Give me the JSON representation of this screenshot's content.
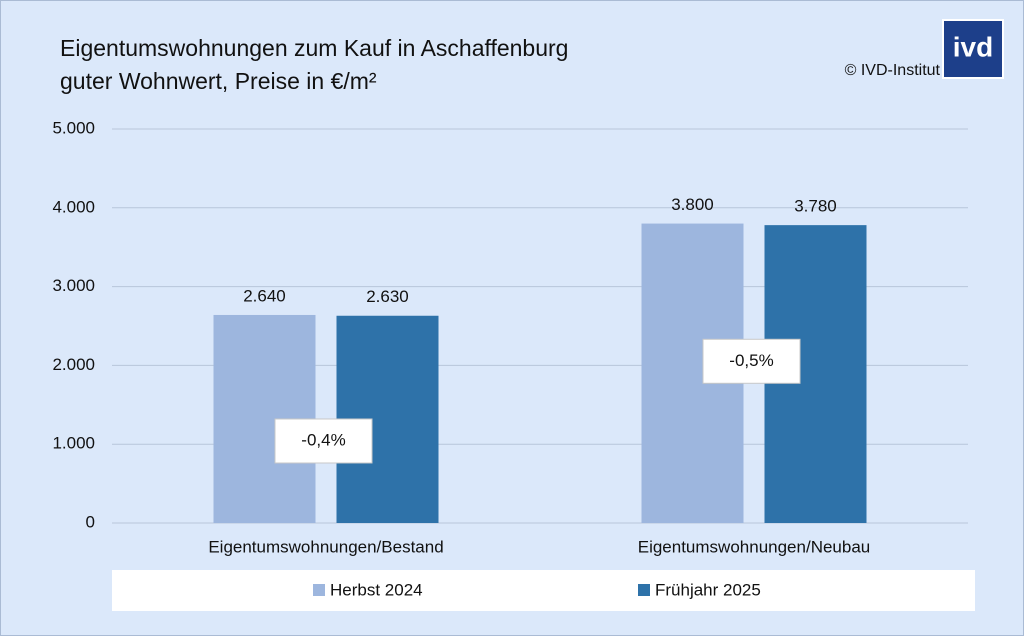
{
  "chart_data": {
    "type": "bar",
    "title": "Eigentumswohnungen zum Kauf in Aschaffenburg",
    "subtitle": "guter Wohnwert, Preise in €/m²",
    "source": "© IVD-Institut",
    "logo": "ivd",
    "categories": [
      "Eigentumswohnungen/Bestand",
      "Eigentumswohnungen/Neubau"
    ],
    "series": [
      {
        "name": "Herbst 2024",
        "color": "#9db6de",
        "values": [
          2640,
          3800
        ],
        "value_labels": [
          "2.640",
          "3.800"
        ]
      },
      {
        "name": "Frühjahr 2025",
        "color": "#2e72a9",
        "values": [
          2630,
          3780
        ],
        "value_labels": [
          "2.630",
          "3.780"
        ]
      }
    ],
    "annotations": [
      "-0,4%",
      "-0,5%"
    ],
    "ylim": [
      0,
      5000
    ],
    "yticks": [
      0,
      {
        "value": 1000,
        "label": "1.000"
      },
      {
        "value": 2000,
        "label": "2.000"
      },
      {
        "value": 3000,
        "label": "3.000"
      },
      {
        "value": 4000,
        "label": "4.000"
      },
      {
        "value": 5000,
        "label": "5.000"
      }
    ],
    "grid": true,
    "legend": "bottom"
  }
}
